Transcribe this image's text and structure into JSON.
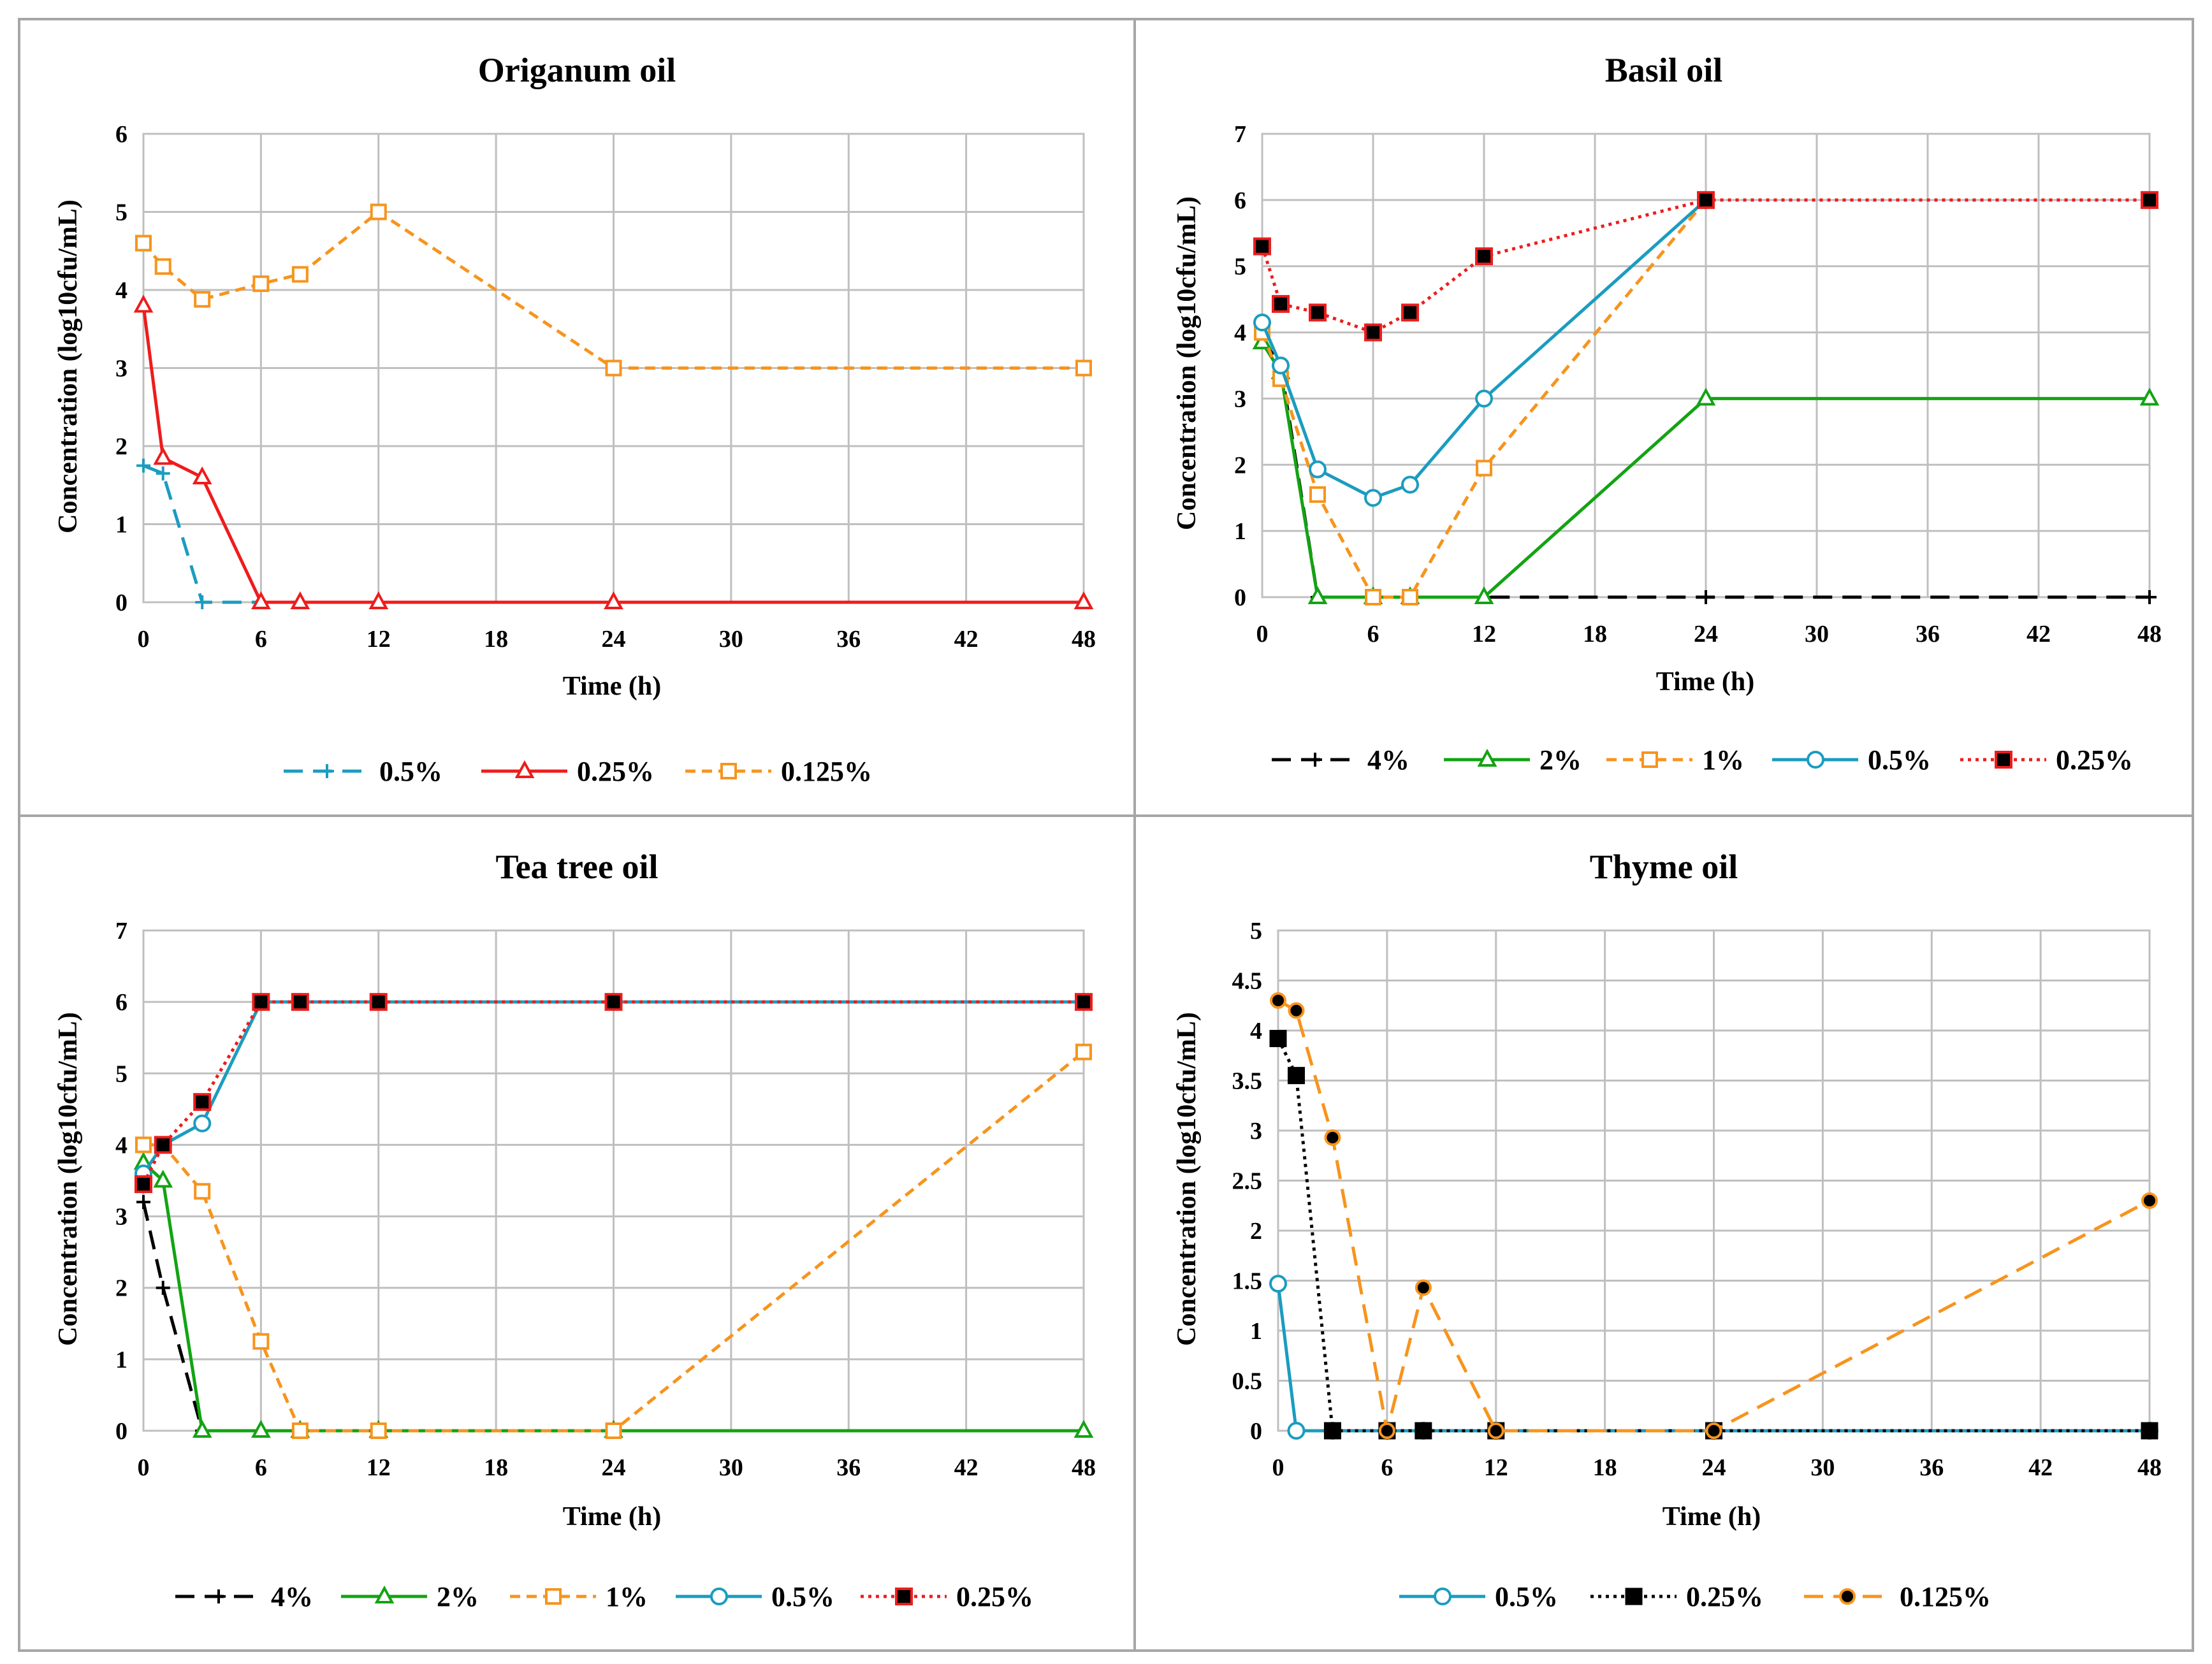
{
  "chart_data": [
    {
      "type": "line",
      "title": "Origanum oil",
      "xlabel": "Time (h)",
      "ylabel": "Concentration (log10cfu/mL)",
      "xlim": [
        0,
        48
      ],
      "ylim": [
        0,
        6
      ],
      "xticks": [
        "0",
        "6",
        "12",
        "18",
        "24",
        "30",
        "36",
        "42",
        "48"
      ],
      "yticks": [
        "0",
        "1",
        "2",
        "3",
        "4",
        "5",
        "6"
      ],
      "grid": true,
      "legend_position": "bottom",
      "series": [
        {
          "name": "0.5%",
          "color": "#1b9cc0",
          "dash": "long-dash",
          "marker": "plus",
          "x": [
            0,
            1,
            3,
            6
          ],
          "values": [
            1.75,
            1.65,
            0,
            0
          ]
        },
        {
          "name": "0.25%",
          "color": "#ee1c1c",
          "dash": "solid",
          "marker": "triangle",
          "x": [
            0,
            1,
            3,
            6,
            8,
            12,
            24,
            48
          ],
          "values": [
            3.8,
            1.85,
            1.6,
            0,
            0,
            0,
            0,
            0
          ]
        },
        {
          "name": "0.125%",
          "color": "#f7941d",
          "dash": "dash",
          "marker": "square-open",
          "x": [
            0,
            1,
            3,
            6,
            8,
            12,
            24,
            48
          ],
          "values": [
            4.6,
            4.3,
            3.88,
            4.08,
            4.2,
            5.0,
            3.0,
            3.0
          ]
        }
      ]
    },
    {
      "type": "line",
      "title": "Basil oil",
      "xlabel": "Time (h)",
      "ylabel": "Concentration (log10cfu/mL)",
      "xlim": [
        0,
        48
      ],
      "ylim": [
        0,
        7
      ],
      "xticks": [
        "0",
        "6",
        "12",
        "18",
        "24",
        "30",
        "36",
        "42",
        "48"
      ],
      "yticks": [
        "0",
        "1",
        "2",
        "3",
        "4",
        "5",
        "6",
        "7"
      ],
      "grid": true,
      "legend_position": "bottom",
      "series": [
        {
          "name": "4%",
          "color": "#000000",
          "dash": "long-dash",
          "marker": "plus",
          "x": [
            0,
            1,
            3,
            6,
            8,
            12,
            24,
            48
          ],
          "values": [
            3.9,
            3.5,
            0,
            0,
            0,
            0,
            0,
            0
          ]
        },
        {
          "name": "2%",
          "color": "#13a313",
          "dash": "solid",
          "marker": "triangle",
          "x": [
            0,
            1,
            3,
            6,
            8,
            12,
            24,
            48
          ],
          "values": [
            3.85,
            3.4,
            0,
            0,
            0,
            0,
            3.0,
            3.0
          ]
        },
        {
          "name": "1%",
          "color": "#f7941d",
          "dash": "dash",
          "marker": "square-open",
          "x": [
            0,
            1,
            3,
            6,
            8,
            12,
            24
          ],
          "values": [
            4.0,
            3.3,
            1.55,
            0,
            0,
            1.95,
            6.0
          ]
        },
        {
          "name": "0.5%",
          "color": "#1b9cc0",
          "dash": "solid",
          "marker": "circle",
          "x": [
            0,
            1,
            3,
            6,
            8,
            12,
            24
          ],
          "values": [
            4.15,
            3.5,
            1.93,
            1.5,
            1.7,
            3.0,
            6.0
          ]
        },
        {
          "name": "0.25%",
          "color": "#ee1c1c",
          "dash": "dot",
          "marker": "square-filled",
          "x": [
            0,
            1,
            3,
            6,
            8,
            12,
            24,
            48
          ],
          "values": [
            5.3,
            4.43,
            4.3,
            4.0,
            4.3,
            5.15,
            6.0,
            6.0
          ]
        }
      ]
    },
    {
      "type": "line",
      "title": "Tea tree oil",
      "xlabel": "Time (h)",
      "ylabel": "Concentration (log10cfu/mL)",
      "xlim": [
        0,
        48
      ],
      "ylim": [
        0,
        7
      ],
      "xticks": [
        "0",
        "6",
        "12",
        "18",
        "24",
        "30",
        "36",
        "42",
        "48"
      ],
      "yticks": [
        "0",
        "1",
        "2",
        "3",
        "4",
        "5",
        "6",
        "7"
      ],
      "grid": true,
      "legend_position": "bottom",
      "series": [
        {
          "name": "4%",
          "color": "#000000",
          "dash": "long-dash",
          "marker": "plus",
          "x": [
            0,
            1,
            3
          ],
          "values": [
            3.2,
            2.0,
            0
          ]
        },
        {
          "name": "2%",
          "color": "#13a313",
          "dash": "solid",
          "marker": "triangle",
          "x": [
            0,
            1,
            3,
            6,
            8,
            12,
            24,
            48
          ],
          "values": [
            3.75,
            3.5,
            0,
            0,
            0,
            0,
            0,
            0
          ]
        },
        {
          "name": "1%",
          "color": "#f7941d",
          "dash": "dash",
          "marker": "square-open",
          "x": [
            0,
            1,
            3,
            6,
            8,
            12,
            24,
            48
          ],
          "values": [
            4.0,
            4.0,
            3.35,
            1.25,
            0,
            0,
            0,
            5.3
          ]
        },
        {
          "name": "0.5%",
          "color": "#1b9cc0",
          "dash": "solid",
          "marker": "circle",
          "x": [
            0,
            1,
            3,
            6,
            8,
            12,
            24,
            48
          ],
          "values": [
            3.6,
            4.0,
            4.3,
            6.0,
            6.0,
            6.0,
            6.0,
            6.0
          ]
        },
        {
          "name": "0.25%",
          "color": "#ee1c1c",
          "dash": "dot",
          "marker": "square-filled",
          "x": [
            0,
            1,
            3,
            6,
            8,
            12,
            24,
            48
          ],
          "values": [
            3.45,
            4.0,
            4.6,
            6.0,
            6.0,
            6.0,
            6.0,
            6.0
          ]
        }
      ]
    },
    {
      "type": "line",
      "title": "Thyme oil",
      "xlabel": "Time (h)",
      "ylabel": "Concentration (log10cfu/mL)",
      "xlim": [
        0,
        48
      ],
      "ylim": [
        0,
        5
      ],
      "xticks": [
        "0",
        "6",
        "12",
        "18",
        "24",
        "30",
        "36",
        "42",
        "48"
      ],
      "yticks": [
        "0",
        "0.5",
        "1",
        "1.5",
        "2",
        "2.5",
        "3",
        "3.5",
        "4",
        "4.5",
        "5"
      ],
      "grid": true,
      "legend_position": "bottom",
      "series": [
        {
          "name": "0.5%",
          "color": "#1b9cc0",
          "dash": "solid",
          "marker": "circle",
          "x": [
            0,
            1,
            3,
            6,
            8,
            12,
            24,
            48
          ],
          "values": [
            1.47,
            0,
            0,
            0,
            0,
            0,
            0,
            0
          ]
        },
        {
          "name": "0.25%",
          "color": "#000000",
          "dash": "dot",
          "marker": "square-black",
          "x": [
            0,
            1,
            3,
            6,
            8,
            12,
            24,
            48
          ],
          "values": [
            3.92,
            3.55,
            0,
            0,
            0,
            0,
            0,
            0
          ]
        },
        {
          "name": "0.125%",
          "color": "#f7941d",
          "dash": "long-dash",
          "marker": "circle-filled",
          "x": [
            0,
            1,
            3,
            6,
            8,
            12,
            24,
            48
          ],
          "values": [
            4.3,
            4.2,
            2.93,
            0,
            1.43,
            0,
            0,
            2.3
          ]
        }
      ]
    }
  ]
}
